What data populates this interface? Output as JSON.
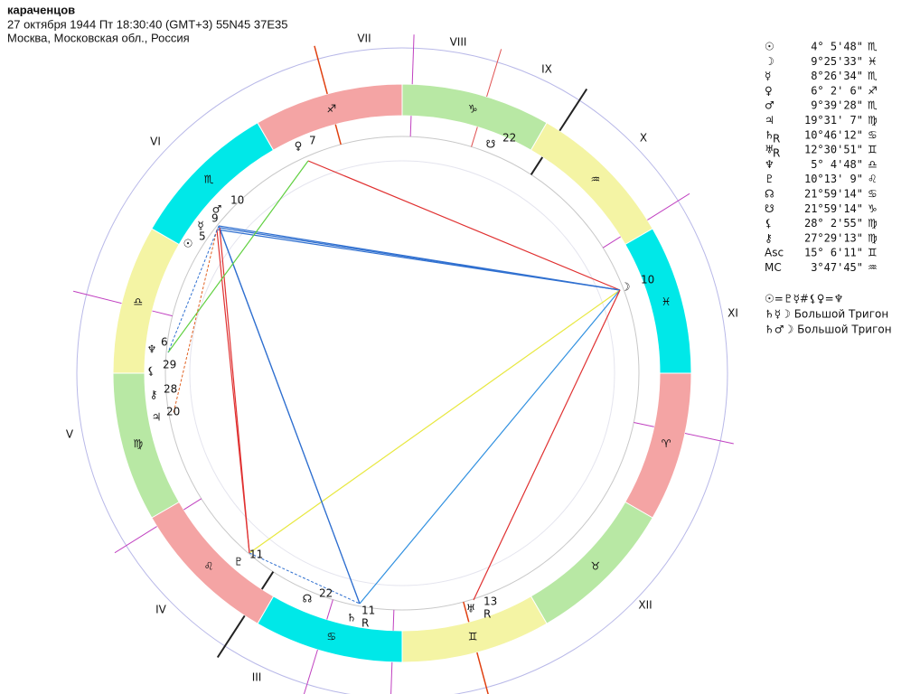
{
  "header": {
    "name": "караченцов",
    "datetime": "27 октября 1944  Пт  18:30:40 (GMT+3) 55N45  37E35",
    "place": "Москва, Московская обл., Россия"
  },
  "wheel": {
    "house_labels": [
      "VII",
      "VIII",
      "IX",
      "X",
      "XI",
      "XII",
      "III",
      "IV",
      "V",
      "VI"
    ],
    "signs": [
      "♈",
      "♉",
      "♊",
      "♋",
      "♌",
      "♍",
      "♎",
      "♏",
      "♐",
      "♑",
      "♒",
      "♓"
    ],
    "planets": [
      {
        "glyph": "☉",
        "degree": "5"
      },
      {
        "glyph": "☿",
        "degree": "9"
      },
      {
        "glyph": "♂",
        "degree": "10"
      },
      {
        "glyph": "♀",
        "degree": "7"
      },
      {
        "glyph": "☋",
        "degree": "22"
      },
      {
        "glyph": "☽",
        "degree": "10"
      },
      {
        "glyph": "♆",
        "degree": "6"
      },
      {
        "glyph": "⚸",
        "degree": "29"
      },
      {
        "glyph": "⚷",
        "degree": "28"
      },
      {
        "glyph": "♃",
        "degree": "20"
      },
      {
        "glyph": "♇",
        "degree": "11"
      },
      {
        "glyph": "☊",
        "degree": "22"
      },
      {
        "glyph": "♄",
        "degree": "11",
        "retro": "R"
      },
      {
        "glyph": "♅",
        "degree": "13",
        "retro": "R"
      }
    ]
  },
  "table": {
    "rows": [
      {
        "glyph": "☉",
        "position": "4° 5'48\"",
        "sign": "♏"
      },
      {
        "glyph": "☽",
        "position": "9°25'33\"",
        "sign": "♓"
      },
      {
        "glyph": "☿",
        "position": "8°26'34\"",
        "sign": "♏"
      },
      {
        "glyph": "♀",
        "position": "6° 2' 6\"",
        "sign": "♐"
      },
      {
        "glyph": "♂",
        "position": "9°39'28\"",
        "sign": "♏"
      },
      {
        "glyph": "♃",
        "position": "19°31' 7\"",
        "sign": "♍"
      },
      {
        "glyph": "♄",
        "retro": "R",
        "position": "10°46'12\"",
        "sign": "♋"
      },
      {
        "glyph": "♅",
        "retro": "R",
        "position": "12°30'51\"",
        "sign": "♊"
      },
      {
        "glyph": "♆",
        "position": "5° 4'48\"",
        "sign": "♎"
      },
      {
        "glyph": "♇",
        "position": "10°13' 9\"",
        "sign": "♌"
      },
      {
        "glyph": "☊",
        "position": "21°59'14\"",
        "sign": "♋"
      },
      {
        "glyph": "☋",
        "position": "21°59'14\"",
        "sign": "♑"
      },
      {
        "glyph": "⚸",
        "position": "28° 2'55\"",
        "sign": "♍"
      },
      {
        "glyph": "⚷",
        "position": "27°29'13\"",
        "sign": "♍"
      },
      {
        "glyph": "Asc",
        "position": "15° 6'11\"",
        "sign": "♊"
      },
      {
        "glyph": "MC",
        "position": "3°47'45\"",
        "sign": "♒"
      }
    ]
  },
  "aspects": [
    "☉=♇☿#⚸♀=♆",
    "♄☿☽ Большой Тригон",
    "♄♂☽ Большой Тригон"
  ]
}
